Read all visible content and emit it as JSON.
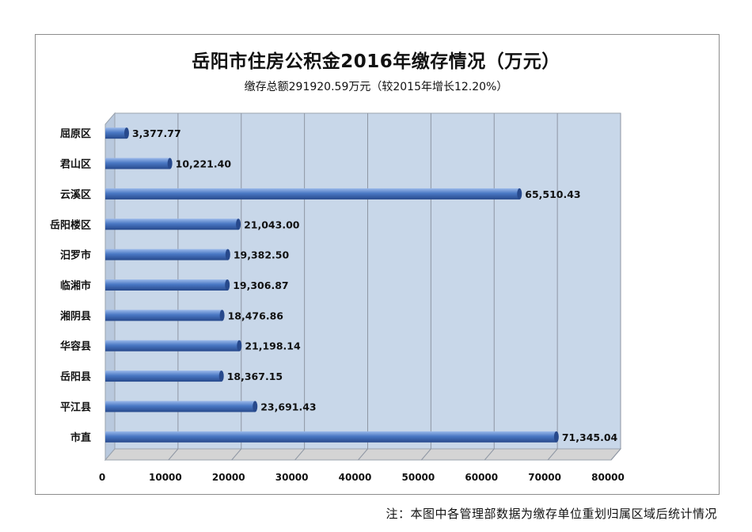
{
  "title": "岳阳市住房公积金2016年缴存情况（万元）",
  "subtitle": "缴存总额291920.59万元（较2015年增长12.20%）",
  "footnote": "注：本图中各管理部数据为缴存单位重划归属区域后统计情况",
  "colors": {
    "bar": "#4a78c4",
    "bar_dark": "#27498c",
    "bar_light": "#9bb9ea",
    "plot_bg": "#c8d7e9",
    "grid": "#8e96a3"
  },
  "chart_data": {
    "type": "bar",
    "orientation": "horizontal",
    "categories": [
      "屈原区",
      "君山区",
      "云溪区",
      "岳阳楼区",
      "汨罗市",
      "临湘市",
      "湘阴县",
      "华容县",
      "岳阳县",
      "平江县",
      "市直"
    ],
    "values": [
      3377.77,
      10221.4,
      65510.43,
      21043.0,
      19382.5,
      19306.87,
      18476.86,
      21198.14,
      18367.15,
      23691.43,
      71345.04
    ],
    "data_labels": [
      "3,377.77",
      "10,221.40",
      "65,510.43",
      "21,043.00",
      "19,382.50",
      "19,306.87",
      "18,476.86",
      "21,198.14",
      "18,367.15",
      "23,691.43",
      "71,345.04"
    ],
    "xlim": [
      0,
      80000
    ],
    "xticks": [
      "0",
      "10000",
      "20000",
      "30000",
      "40000",
      "50000",
      "60000",
      "70000",
      "80000"
    ],
    "grid": true,
    "style": "3d-cylinder"
  }
}
